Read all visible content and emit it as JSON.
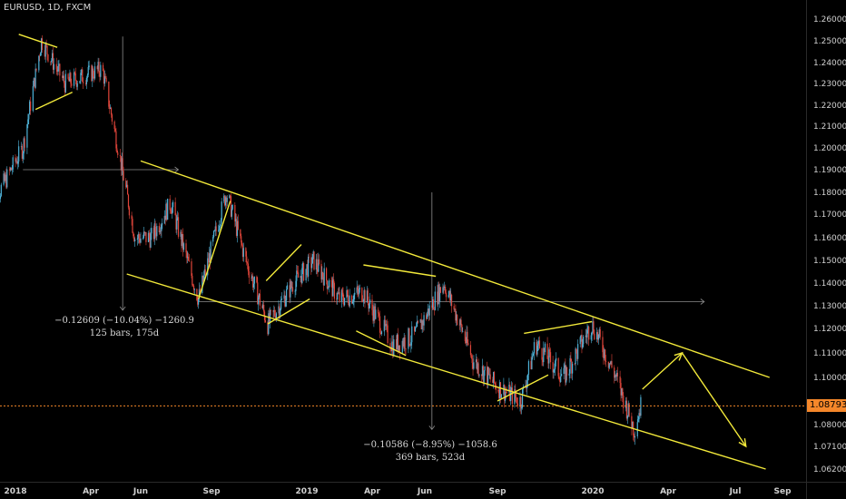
{
  "symbol_label": "EURUSD, 1D, FXCM",
  "colors": {
    "background": "#000000",
    "up": "#4fb3d9",
    "down": "#e0453a",
    "trendline": "#f2e93a",
    "measure": "#8c8c8c",
    "price_tag": "#f5872a",
    "axis_text": "#d0d0d0"
  },
  "measurements": [
    {
      "line1": "−0.12609 (−10.04%) −1260.9",
      "line2": "125 bars, 175d"
    },
    {
      "line1": "−0.10586 (−8.95%) −1058.6",
      "line2": "369 bars, 523d"
    }
  ],
  "last_price_label": "1.08793",
  "chart_data": {
    "type": "candlestick",
    "title": "EURUSD, 1D, FXCM",
    "y_axis": {
      "ticks": [
        "1.26000",
        "1.25000",
        "1.24000",
        "1.23000",
        "1.22000",
        "1.21000",
        "1.20000",
        "1.19000",
        "1.18000",
        "1.17000",
        "1.16000",
        "1.15000",
        "1.14000",
        "1.13000",
        "1.12000",
        "1.11000",
        "1.10000",
        "1.08000",
        "1.07100",
        "1.06200"
      ],
      "range": [
        1.058,
        1.265
      ]
    },
    "x_axis": {
      "ticks": [
        "2018",
        "Apr",
        "Jun",
        "Sep",
        "2019",
        "Apr",
        "Jun",
        "Sep",
        "2020",
        "Apr",
        "Jul",
        "Sep"
      ],
      "range": [
        "2017-12-01",
        "2020-10-10"
      ]
    },
    "last_price": 1.08793,
    "price_path": [
      {
        "date": "2017-12-01",
        "close": 1.172
      },
      {
        "date": "2018-01-10",
        "close": 1.2
      },
      {
        "date": "2018-02-01",
        "close": 1.25
      },
      {
        "date": "2018-03-01",
        "close": 1.23
      },
      {
        "date": "2018-04-15",
        "close": 1.237
      },
      {
        "date": "2018-05-25",
        "close": 1.16
      },
      {
        "date": "2018-06-15",
        "close": 1.16
      },
      {
        "date": "2018-07-10",
        "close": 1.175
      },
      {
        "date": "2018-08-15",
        "close": 1.133
      },
      {
        "date": "2018-09-20",
        "close": 1.18
      },
      {
        "date": "2018-10-15",
        "close": 1.15
      },
      {
        "date": "2018-11-12",
        "close": 1.122
      },
      {
        "date": "2018-12-15",
        "close": 1.14
      },
      {
        "date": "2019-01-10",
        "close": 1.15
      },
      {
        "date": "2019-02-15",
        "close": 1.133
      },
      {
        "date": "2019-03-20",
        "close": 1.136
      },
      {
        "date": "2019-04-25",
        "close": 1.113
      },
      {
        "date": "2019-05-20",
        "close": 1.117
      },
      {
        "date": "2019-06-25",
        "close": 1.14
      },
      {
        "date": "2019-08-01",
        "close": 1.107
      },
      {
        "date": "2019-09-01",
        "close": 1.096
      },
      {
        "date": "2019-10-01",
        "close": 1.09
      },
      {
        "date": "2019-10-20",
        "close": 1.114
      },
      {
        "date": "2019-11-25",
        "close": 1.1
      },
      {
        "date": "2019-12-31",
        "close": 1.122
      },
      {
        "date": "2020-01-28",
        "close": 1.101
      },
      {
        "date": "2020-02-20",
        "close": 1.078
      },
      {
        "date": "2020-02-28",
        "close": 1.088
      }
    ],
    "annotations": [
      {
        "kind": "trendline",
        "points": [
          [
            "2018-01-05",
            1.253
          ],
          [
            "2018-02-20",
            1.247
          ]
        ]
      },
      {
        "kind": "trendline",
        "points": [
          [
            "2018-01-25",
            1.218
          ],
          [
            "2018-03-10",
            1.226
          ]
        ]
      },
      {
        "kind": "trendline",
        "points": [
          [
            "2018-06-01",
            1.194
          ],
          [
            "2020-08-15",
            1.1
          ]
        ]
      },
      {
        "kind": "trendline",
        "points": [
          [
            "2018-05-15",
            1.144
          ],
          [
            "2020-08-10",
            1.062
          ]
        ]
      },
      {
        "kind": "trendline",
        "points": [
          [
            "2018-08-15",
            1.133
          ],
          [
            "2018-09-25",
            1.176
          ]
        ]
      },
      {
        "kind": "trendline",
        "points": [
          [
            "2018-11-10",
            1.141
          ],
          [
            "2018-12-25",
            1.157
          ]
        ]
      },
      {
        "kind": "trendline",
        "points": [
          [
            "2018-11-12",
            1.122
          ],
          [
            "2019-01-05",
            1.133
          ]
        ]
      },
      {
        "kind": "trendline",
        "points": [
          [
            "2019-03-20",
            1.148
          ],
          [
            "2019-06-15",
            1.143
          ]
        ]
      },
      {
        "kind": "trendline",
        "points": [
          [
            "2019-03-10",
            1.119
          ],
          [
            "2019-05-10",
            1.109
          ]
        ]
      },
      {
        "kind": "trendline",
        "points": [
          [
            "2019-09-01",
            1.09
          ],
          [
            "2019-11-05",
            1.101
          ]
        ]
      },
      {
        "kind": "trendline",
        "points": [
          [
            "2019-10-05",
            1.118
          ],
          [
            "2019-12-31",
            1.123
          ]
        ]
      },
      {
        "kind": "projection",
        "points": [
          [
            "2020-03-01",
            1.095
          ],
          [
            "2020-04-20",
            1.11
          ],
          [
            "2020-07-15",
            1.071
          ]
        ]
      }
    ]
  }
}
